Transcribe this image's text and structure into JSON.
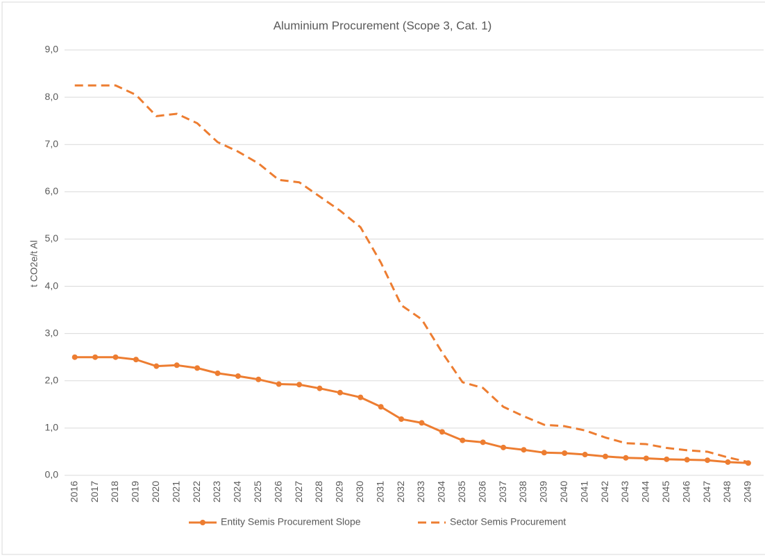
{
  "chart_data": {
    "type": "line",
    "title": "Aluminium Procurement (Scope 3, Cat. 1)",
    "y_label": "t CO2e/t Al",
    "categories": [
      "2016",
      "2017",
      "2018",
      "2019",
      "2020",
      "2021",
      "2022",
      "2023",
      "2024",
      "2025",
      "2026",
      "2027",
      "2028",
      "2029",
      "2030",
      "2031",
      "2032",
      "2033",
      "2034",
      "2035",
      "2036",
      "2037",
      "2038",
      "2039",
      "2040",
      "2041",
      "2042",
      "2043",
      "2044",
      "2045",
      "2046",
      "2047",
      "2048",
      "2049"
    ],
    "series": [
      {
        "name": "Entity Semis Procurement Slope",
        "color": "#ed7d31",
        "style": "solid-marker",
        "values": [
          2.5,
          2.5,
          2.5,
          2.45,
          2.31,
          2.33,
          2.27,
          2.16,
          2.1,
          2.03,
          1.93,
          1.92,
          1.84,
          1.75,
          1.65,
          1.45,
          1.19,
          1.11,
          0.92,
          0.74,
          0.7,
          0.59,
          0.54,
          0.48,
          0.47,
          0.44,
          0.4,
          0.37,
          0.36,
          0.34,
          0.33,
          0.32,
          0.28,
          0.26
        ]
      },
      {
        "name": "Sector Semis Procurement",
        "color": "#ed7d31",
        "style": "dashed",
        "values": [
          8.25,
          8.25,
          8.25,
          8.05,
          7.6,
          7.65,
          7.45,
          7.05,
          6.85,
          6.6,
          6.25,
          6.2,
          5.9,
          5.6,
          5.25,
          4.5,
          3.6,
          3.3,
          2.6,
          1.97,
          1.85,
          1.45,
          1.25,
          1.07,
          1.04,
          0.95,
          0.8,
          0.68,
          0.66,
          0.58,
          0.53,
          0.5,
          0.38,
          0.28
        ]
      }
    ],
    "ylim": [
      0,
      9
    ],
    "yticks": [
      {
        "value": 0,
        "label": "0,0"
      },
      {
        "value": 1,
        "label": "1,0"
      },
      {
        "value": 2,
        "label": "2,0"
      },
      {
        "value": 3,
        "label": "3,0"
      },
      {
        "value": 4,
        "label": "4,0"
      },
      {
        "value": 5,
        "label": "5,0"
      },
      {
        "value": 6,
        "label": "6,0"
      },
      {
        "value": 7,
        "label": "7,0"
      },
      {
        "value": 8,
        "label": "8,0"
      },
      {
        "value": 9,
        "label": "9,0"
      }
    ],
    "grid": true,
    "legend": "bottom"
  }
}
